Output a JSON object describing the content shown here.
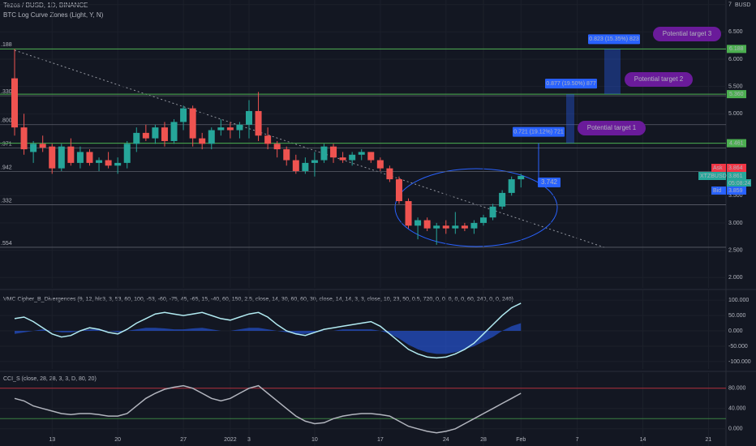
{
  "chart_data": [
    {
      "type": "candlestick",
      "title": "Tezos / BUSD, 1D, BINANCE",
      "subtitle": "BTC Log Curve Zones (Light, Y, N)",
      "currency": "BUSD",
      "categories": [
        null,
        null,
        null,
        null,
        "13",
        null,
        null,
        null,
        null,
        null,
        null,
        "20",
        null,
        null,
        null,
        null,
        null,
        null,
        "27",
        null,
        null,
        null,
        null,
        "2022",
        null,
        "3",
        null,
        null,
        null,
        null,
        null,
        null,
        "10",
        null,
        null,
        null,
        null,
        null,
        null,
        "17",
        null,
        null,
        null,
        null,
        null,
        null,
        "24",
        null,
        null,
        null,
        "28",
        null,
        null,
        null,
        "Feb",
        null,
        null,
        null,
        null,
        null,
        "7",
        null,
        null,
        null,
        null,
        null,
        null,
        "14",
        null,
        null,
        null,
        null,
        null,
        null,
        "21"
      ],
      "open": [
        5.65,
        4.75,
        4.3,
        4.45,
        4.4,
        4.0,
        4.4,
        4.1,
        4.3,
        4.1,
        4.15,
        4.05,
        4.1,
        4.45,
        4.65,
        4.55,
        4.75,
        4.5,
        4.85,
        5.1,
        4.55,
        4.45,
        4.7,
        4.75,
        4.7,
        4.8,
        5.05,
        4.6,
        4.45,
        4.35,
        4.15,
        3.95,
        4.1,
        4.15,
        4.4,
        4.2,
        4.15,
        4.25,
        4.3,
        4.15,
        4.0,
        3.8,
        3.4,
        2.95,
        3.05,
        2.9,
        2.95,
        2.9,
        2.95,
        2.9,
        3.0,
        3.1,
        3.3,
        3.55,
        3.8,
        null,
        null,
        null,
        null,
        null,
        null,
        null,
        null,
        null,
        null,
        null,
        null,
        null,
        null,
        null,
        null,
        null,
        null,
        null,
        null
      ],
      "high": [
        6.19,
        5.0,
        4.5,
        4.6,
        4.45,
        4.45,
        4.55,
        4.4,
        4.35,
        4.2,
        4.3,
        4.2,
        4.5,
        4.75,
        4.8,
        4.8,
        4.85,
        4.9,
        5.15,
        5.15,
        4.65,
        4.75,
        4.9,
        4.85,
        4.85,
        5.25,
        5.4,
        4.75,
        4.5,
        4.4,
        4.25,
        4.2,
        4.3,
        4.45,
        4.45,
        4.3,
        4.3,
        4.35,
        4.3,
        4.2,
        4.05,
        3.85,
        3.45,
        3.1,
        3.1,
        3.0,
        3.05,
        3.2,
        3.0,
        3.05,
        3.15,
        3.35,
        3.6,
        3.85,
        3.9,
        null,
        null,
        null,
        null,
        null,
        null,
        null,
        null,
        null,
        null,
        null,
        null,
        null,
        null,
        null,
        null,
        null,
        null,
        null,
        null
      ],
      "low": [
        4.6,
        4.25,
        4.1,
        4.3,
        3.9,
        3.95,
        4.05,
        4.0,
        4.05,
        3.95,
        4.0,
        3.9,
        4.0,
        4.3,
        4.5,
        4.45,
        4.4,
        4.45,
        4.7,
        4.4,
        4.35,
        4.35,
        4.6,
        4.55,
        4.55,
        4.55,
        4.5,
        4.35,
        4.2,
        4.05,
        3.9,
        3.9,
        3.85,
        4.1,
        4.1,
        4.1,
        4.05,
        4.15,
        4.1,
        3.95,
        3.75,
        3.35,
        2.9,
        2.7,
        2.85,
        2.6,
        2.8,
        2.8,
        2.85,
        2.8,
        2.95,
        3.05,
        3.25,
        3.5,
        3.65,
        null,
        null,
        null,
        null,
        null,
        null,
        null,
        null,
        null,
        null,
        null,
        null,
        null,
        null,
        null,
        null,
        null,
        null,
        null,
        null
      ],
      "close": [
        4.75,
        4.35,
        4.45,
        4.38,
        4.0,
        4.4,
        4.1,
        4.3,
        4.1,
        4.15,
        4.05,
        4.1,
        4.45,
        4.65,
        4.55,
        4.75,
        4.5,
        4.85,
        5.1,
        4.55,
        4.45,
        4.7,
        4.75,
        4.7,
        4.8,
        5.05,
        4.6,
        4.45,
        4.35,
        4.15,
        3.95,
        4.1,
        4.15,
        4.4,
        4.2,
        4.15,
        4.25,
        4.3,
        4.15,
        4.0,
        3.8,
        3.4,
        2.95,
        3.05,
        2.9,
        2.95,
        2.9,
        2.95,
        2.9,
        3.0,
        3.1,
        3.3,
        3.55,
        3.8,
        3.861,
        null,
        null,
        null,
        null,
        null,
        null,
        null,
        null,
        null,
        null,
        null,
        null,
        null,
        null,
        null,
        null,
        null,
        null,
        null,
        null
      ],
      "up_color": "#26a69a",
      "down_color": "#ef5350",
      "ylim": [
        1.81,
        7.085
      ],
      "yticks": [
        {
          "value": 2,
          "label": "2.000"
        },
        {
          "value": 2.5,
          "label": "2.500"
        },
        {
          "value": 3,
          "label": "3.000"
        },
        {
          "value": 3.5,
          "label": "3.500"
        },
        {
          "value": 5,
          "label": "5.000"
        },
        {
          "value": 5.5,
          "label": "5.500"
        },
        {
          "value": 6,
          "label": "6.000"
        },
        {
          "value": 6.5,
          "label": "6.500"
        },
        7
      ],
      "zones": [
        {
          "value": 6.188,
          "label": ".188"
        },
        {
          "value": 5.33,
          "label": ".330"
        },
        {
          "value": 4.8,
          "label": ".800"
        },
        {
          "value": 4.371,
          "label": ".371"
        },
        {
          "value": 3.942,
          "label": ".942"
        },
        {
          "value": 3.332,
          "label": ".332"
        },
        {
          "value": 2.554,
          "label": ".554"
        }
      ],
      "levels": [
        {
          "value": 6.188,
          "label": "6.188"
        },
        {
          "value": 5.36,
          "label": "5.360"
        },
        {
          "value": 4.461,
          "label": "4.461"
        }
      ],
      "level_color": "#4caf50",
      "alert": 3.742,
      "measures": [
        "0.721 (19.12%) 721",
        "0.877 (19.50%) 877",
        "0.823 (15.35%) 823"
      ],
      "targets": [
        "Potential target 1",
        "Potential target 2",
        "Potential target 3"
      ],
      "quotes": [
        {
          "label": "Ask",
          "value": 3.864,
          "color": "#f23645"
        },
        {
          "label": "XTZBUSD",
          "value": 3.861,
          "color": "#26a69a"
        },
        {
          "label": "Bid",
          "value": 3.859,
          "color": "#2962ff"
        }
      ],
      "countdown": "05:08:24"
    },
    {
      "type": "line",
      "title": "VMC Cipher_B_Divergences (9, 12, hlc3, 3, 53, 60, 100, -53, -60, -75, 45, -65, 15, -40, 60, 150, 2.5, close, 14, 30, 60, 60, 30, close, 14, 14, 3, 3, close, 10, 23, 50, 0.5, 720, 0, 0, 0, 0, 0, 60, 240, 0, 0, 240)",
      "series": [
        {
          "color": "#2962ff",
          "fill": true,
          "values": [
            -10,
            -5,
            0,
            5,
            0,
            -5,
            -5,
            0,
            5,
            5,
            0,
            -5,
            0,
            5,
            10,
            10,
            8,
            5,
            5,
            8,
            10,
            5,
            0,
            0,
            5,
            10,
            10,
            5,
            0,
            -5,
            -10,
            -10,
            -5,
            0,
            0,
            5,
            5,
            5,
            5,
            0,
            -10,
            -25,
            -45,
            -60,
            -70,
            -75,
            -75,
            -70,
            -60,
            -50,
            -35,
            -20,
            0,
            15,
            25
          ]
        },
        {
          "color": "#b2ebf2",
          "fill": false,
          "values": [
            40,
            45,
            30,
            10,
            -10,
            -20,
            -15,
            0,
            10,
            5,
            -5,
            -10,
            5,
            25,
            40,
            55,
            60,
            55,
            50,
            55,
            60,
            50,
            40,
            35,
            45,
            55,
            60,
            45,
            20,
            0,
            -10,
            -15,
            -5,
            5,
            10,
            15,
            20,
            25,
            30,
            15,
            -10,
            -35,
            -60,
            -75,
            -85,
            -88,
            -85,
            -75,
            -60,
            -40,
            -10,
            20,
            50,
            75,
            90
          ]
        }
      ],
      "ylim": [
        -124,
        132
      ],
      "yticks": [
        {
          "value": 100,
          "label": "100.000"
        },
        {
          "value": 50,
          "label": "50.000"
        },
        {
          "value": 0,
          "label": "0.000"
        },
        {
          "value": -50,
          "label": "-50.000"
        },
        {
          "value": -100,
          "label": "-100.000"
        }
      ]
    },
    {
      "type": "line",
      "title": "CCI_S (close, 28, 28, 3, 3, D, 80, 20)",
      "series": [
        {
          "color": "#b2b5be",
          "fill": false,
          "values": [
            60,
            55,
            45,
            40,
            35,
            30,
            28,
            30,
            30,
            28,
            25,
            25,
            30,
            45,
            60,
            70,
            78,
            82,
            85,
            80,
            70,
            60,
            55,
            60,
            70,
            80,
            85,
            70,
            55,
            40,
            25,
            15,
            10,
            12,
            20,
            25,
            28,
            30,
            30,
            28,
            25,
            15,
            5,
            0,
            -5,
            -8,
            -5,
            0,
            10,
            20,
            30,
            40,
            50,
            60,
            70
          ]
        }
      ],
      "levels": [
        {
          "value": 80,
          "color": "#f23645"
        },
        {
          "value": 20,
          "color": "#4caf50"
        }
      ],
      "ylim": [
        -34,
        110
      ],
      "yticks": [
        {
          "value": 80,
          "label": "80.000"
        },
        {
          "value": 40,
          "label": "40.000"
        },
        {
          "value": 0,
          "label": "0.000"
        }
      ]
    }
  ]
}
